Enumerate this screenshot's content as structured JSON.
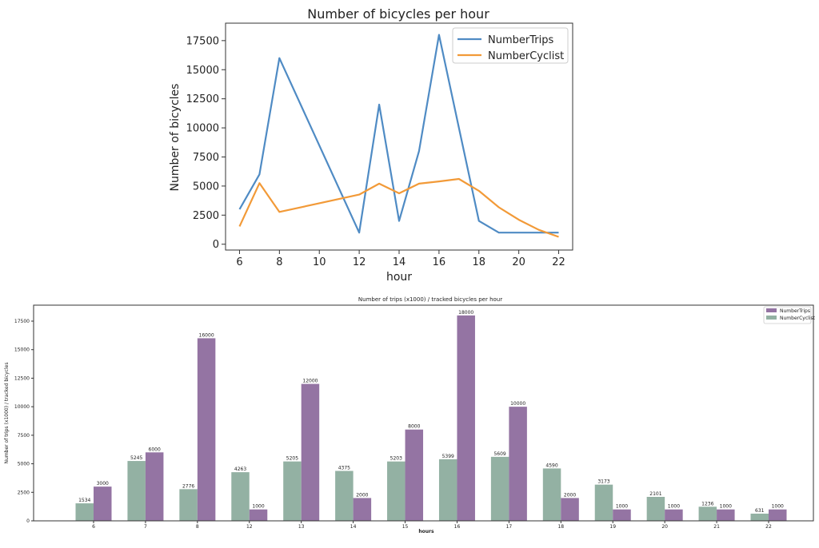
{
  "chart_data": [
    {
      "type": "line",
      "title": "Number of bicycles per hour",
      "xlabel": "hour",
      "ylabel": "Number of bicycles",
      "xlim": [
        5.3,
        22.7
      ],
      "ylim": [
        -500,
        19000
      ],
      "x_ticks": [
        6,
        8,
        10,
        12,
        14,
        16,
        18,
        20,
        22
      ],
      "y_ticks": [
        0,
        2500,
        5000,
        7500,
        10000,
        12500,
        15000,
        17500
      ],
      "legend_position": "top-right",
      "series": [
        {
          "name": "NumberTrips",
          "color": "#4f8bc4",
          "x": [
            6,
            7,
            8,
            12,
            13,
            14,
            15,
            16,
            17,
            18,
            19,
            20,
            21,
            22
          ],
          "y": [
            3000,
            6000,
            16000,
            1000,
            12000,
            2000,
            8000,
            18000,
            10000,
            2000,
            1000,
            1000,
            1000,
            1000
          ]
        },
        {
          "name": "NumberCyclist",
          "color": "#f29a38",
          "x": [
            6,
            7,
            8,
            12,
            13,
            14,
            15,
            16,
            17,
            18,
            19,
            20,
            21,
            22
          ],
          "y": [
            1534,
            5245,
            2776,
            4263,
            5205,
            4375,
            5203,
            5399,
            5609,
            4590,
            3173,
            2101,
            1236,
            631
          ]
        }
      ]
    },
    {
      "type": "bar",
      "title": "Number of trips (x1000) / tracked bicycles per hour",
      "xlabel": "hours",
      "ylabel": "Number of trips (x1000) / tracked bicycles",
      "ylim": [
        0,
        18900
      ],
      "y_ticks": [
        0,
        2500,
        5000,
        7500,
        10000,
        12500,
        15000,
        17500
      ],
      "legend_position": "top-right",
      "categories": [
        "6",
        "7",
        "8",
        "12",
        "13",
        "14",
        "15",
        "16",
        "17",
        "18",
        "19",
        "20",
        "21",
        "22"
      ],
      "series": [
        {
          "name": "NumberTrips",
          "color": "#9474a3",
          "values": [
            3000,
            6000,
            16000,
            1000,
            12000,
            2000,
            8000,
            18000,
            10000,
            2000,
            1000,
            1000,
            1000,
            1000
          ]
        },
        {
          "name": "NumberCyclist",
          "color": "#93b1a3",
          "values": [
            1534,
            5245,
            2776,
            4263,
            5205,
            4375,
            5203,
            5399,
            5609,
            4590,
            3173,
            2101,
            1236,
            631
          ]
        }
      ]
    }
  ]
}
